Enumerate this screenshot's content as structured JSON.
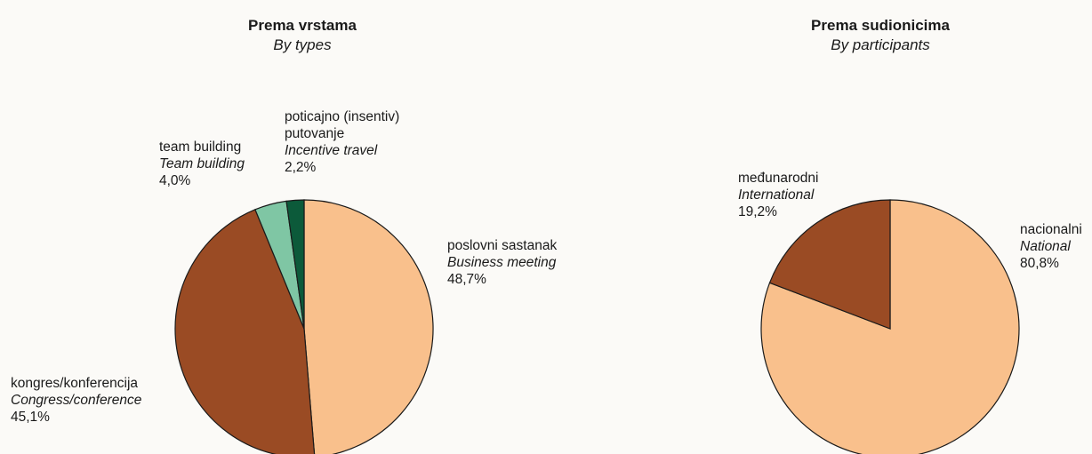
{
  "colors": {
    "light_orange": "#f9c08c",
    "brown": "#9a4b24",
    "light_green": "#7fc6a4",
    "dark_green": "#0c5a3a",
    "outline": "#1a1a1a"
  },
  "chart_data": [
    {
      "type": "pie",
      "title": "Prema vrstama",
      "subtitle": "By types",
      "slices": [
        {
          "label": "poslovni sastanak",
          "label_en": "Business meeting",
          "value": 48.7,
          "value_text": "48,7%",
          "color": "#f9c08c"
        },
        {
          "label": "kongres/konferencija",
          "label_en": "Congress/conference",
          "value": 45.1,
          "value_text": "45,1%",
          "color": "#9a4b24"
        },
        {
          "label": "team building",
          "label_en": "Team building",
          "value": 4.0,
          "value_text": "4,0%",
          "color": "#7fc6a4"
        },
        {
          "label": "poticajno (insentiv) putovanje",
          "label_line1": "poticajno (insentiv)",
          "label_line2": "putovanje",
          "label_en": "Incentive travel",
          "value": 2.2,
          "value_text": "2,2%",
          "color": "#0c5a3a"
        }
      ]
    },
    {
      "type": "pie",
      "title": "Prema sudionicima",
      "subtitle": "By participants",
      "slices": [
        {
          "label": "nacionalni",
          "label_en": "National",
          "value": 80.8,
          "value_text": "80,8%",
          "color": "#f9c08c"
        },
        {
          "label": "međunarodni",
          "label_en": "International",
          "value": 19.2,
          "value_text": "19,2%",
          "color": "#9a4b24"
        }
      ]
    }
  ]
}
